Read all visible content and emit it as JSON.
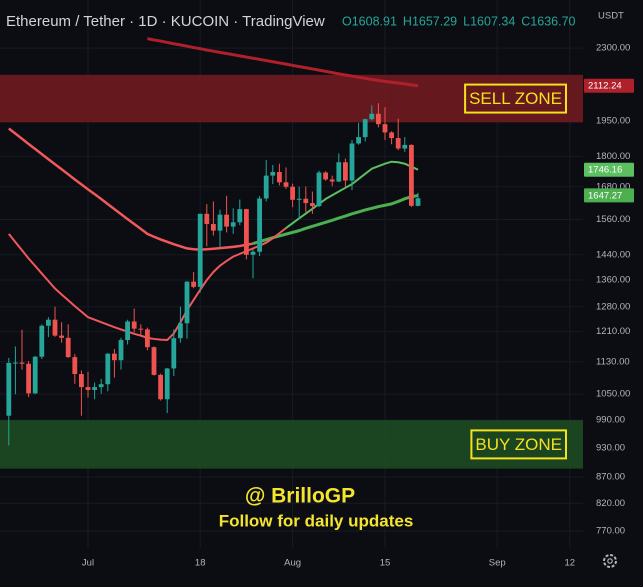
{
  "chart_data": {
    "type": "candlestick",
    "title": "Ethereum / Tether · 1D · KUCOIN · TradingView",
    "ohlc_legend": [
      "O1608.91",
      "H1657.29",
      "L1607.34",
      "C1636.70"
    ],
    "y_unit": "USDT",
    "log_scale": true,
    "grid": true,
    "up_color": "#26a69a",
    "down_color": "#ef5350",
    "ylim": [
      741,
      2565
    ],
    "yticks": [
      {
        "value": 770,
        "label": "770.00"
      },
      {
        "value": 820,
        "label": "820.00"
      },
      {
        "value": 870,
        "label": "870.00"
      },
      {
        "value": 930,
        "label": "930.00"
      },
      {
        "value": 990,
        "label": "990.00"
      },
      {
        "value": 1050,
        "label": "1050.00"
      },
      {
        "value": 1130,
        "label": "1130.00"
      },
      {
        "value": 1210,
        "label": "1210.00"
      },
      {
        "value": 1280,
        "label": "1280.00"
      },
      {
        "value": 1360,
        "label": "1360.00"
      },
      {
        "value": 1440,
        "label": "1440.00"
      },
      {
        "value": 1560,
        "label": "1560.00"
      },
      {
        "value": 1680,
        "label": "1680.00"
      },
      {
        "value": 1800,
        "label": "1800.00"
      },
      {
        "value": 1950,
        "label": "1950.00"
      },
      {
        "value": 2300,
        "label": "2300.00"
      }
    ],
    "categories": [
      null,
      null,
      null,
      null,
      null,
      null,
      null,
      null,
      null,
      null,
      null,
      null,
      "Jul",
      null,
      null,
      null,
      null,
      null,
      null,
      null,
      null,
      null,
      null,
      null,
      null,
      null,
      null,
      null,
      null,
      "18",
      null,
      null,
      null,
      null,
      null,
      null,
      null,
      null,
      null,
      null,
      null,
      null,
      null,
      "Aug",
      null,
      null,
      null,
      null,
      null,
      null,
      null,
      null,
      null,
      null,
      null,
      null,
      null,
      "15",
      null,
      null,
      null,
      null,
      null,
      null,
      null,
      null,
      null,
      null,
      null,
      null,
      null,
      null,
      null,
      null,
      "Sep",
      null,
      null,
      null,
      null,
      null,
      null,
      null,
      null,
      null,
      null,
      "12",
      null
    ],
    "open": [
      1000,
      1127,
      1128,
      1125,
      1052,
      1143,
      1226,
      1243,
      1199,
      1193,
      1142,
      1099,
      1067,
      1060,
      1067,
      1074,
      1151,
      1134,
      1187,
      1238,
      1218,
      1216,
      1168,
      1097,
      1038,
      1113,
      1192,
      1233,
      1355,
      1339,
      1580,
      1544,
      1521,
      1577,
      1535,
      1550,
      1597,
      1440,
      1450,
      1636,
      1723,
      1737,
      1697,
      1680,
      1631,
      1635,
      1619,
      1608,
      1735,
      1708,
      1700,
      1776,
      1704,
      1853,
      1880,
      1958,
      1982,
      1936,
      1900,
      1876,
      1832,
      1847,
      1608.91,
      null,
      null,
      null,
      null,
      null,
      null,
      null,
      null,
      null,
      null,
      null,
      null,
      null,
      null,
      null,
      null,
      null,
      null,
      null,
      null,
      null,
      null,
      null,
      null
    ],
    "high": [
      1140,
      1170,
      1215,
      1132,
      1145,
      1230,
      1250,
      1280,
      1236,
      1230,
      1150,
      1108,
      1105,
      1078,
      1087,
      1152,
      1163,
      1193,
      1243,
      1275,
      1230,
      1221,
      1170,
      1100,
      1114,
      1216,
      1280,
      1356,
      1385,
      1581,
      1615,
      1625,
      1595,
      1646,
      1600,
      1632,
      1598,
      1458,
      1645,
      1785,
      1765,
      1770,
      1755,
      1692,
      1680,
      1681,
      1662,
      1742,
      1740,
      1723,
      1812,
      1791,
      1868,
      1942,
      1960,
      2020,
      2030,
      2012,
      1905,
      1960,
      1880,
      1850,
      1657.29,
      null,
      null,
      null,
      null,
      null,
      null,
      null,
      null,
      null,
      null,
      null,
      null,
      null,
      null,
      null,
      null,
      null,
      null,
      null,
      null,
      null,
      null,
      null,
      null
    ],
    "low": [
      935,
      1050,
      1110,
      1043,
      1050,
      1137,
      1195,
      1196,
      1180,
      1140,
      1075,
      1000,
      1042,
      1038,
      1051,
      1057,
      1090,
      1110,
      1175,
      1208,
      1200,
      1160,
      1095,
      1035,
      1006,
      1094,
      1180,
      1191,
      1335,
      1322,
      1468,
      1504,
      1463,
      1515,
      1510,
      1540,
      1425,
      1365,
      1436,
      1625,
      1690,
      1685,
      1672,
      1604,
      1560,
      1585,
      1580,
      1604,
      1703,
      1682,
      1698,
      1680,
      1667,
      1848,
      1862,
      1952,
      1922,
      1867,
      1850,
      1825,
      1818,
      1605,
      1607.34,
      null,
      null,
      null,
      null,
      null,
      null,
      null,
      null,
      null,
      null,
      null,
      null,
      null,
      null,
      null,
      null,
      null,
      null,
      null,
      null,
      null,
      null,
      null,
      null
    ],
    "close": [
      1127,
      1128,
      1125,
      1052,
      1143,
      1226,
      1243,
      1199,
      1193,
      1142,
      1099,
      1067,
      1060,
      1067,
      1074,
      1151,
      1134,
      1187,
      1238,
      1218,
      1216,
      1168,
      1097,
      1038,
      1113,
      1192,
      1233,
      1355,
      1339,
      1580,
      1544,
      1521,
      1577,
      1535,
      1550,
      1597,
      1440,
      1450,
      1636,
      1723,
      1737,
      1697,
      1680,
      1631,
      1635,
      1619,
      1608,
      1735,
      1708,
      1700,
      1776,
      1704,
      1853,
      1880,
      1958,
      1982,
      1936,
      1900,
      1876,
      1832,
      1847,
      1608.91,
      1636.7,
      null,
      null,
      null,
      null,
      null,
      null,
      null,
      null,
      null,
      null,
      null,
      null,
      null,
      null,
      null,
      null,
      null,
      null,
      null,
      null,
      null,
      null,
      null,
      null
    ],
    "series": [
      {
        "color": "#b0202a",
        "width": 3,
        "show_last_value": true,
        "values": [
          null,
          null,
          null,
          null,
          null,
          null,
          null,
          null,
          null,
          null,
          null,
          null,
          null,
          null,
          null,
          null,
          null,
          null,
          null,
          null,
          null,
          2350,
          2343,
          2337,
          2330,
          2323,
          2317,
          2310,
          2303,
          2297,
          2290,
          2284,
          2278,
          2272,
          2266,
          2260,
          2254,
          2248,
          2242,
          2236,
          2230,
          2224,
          2218,
          2212,
          2206,
          2200,
          2194,
          2188,
          2182,
          2176,
          2170,
          2164,
          2159,
          2153,
          2148,
          2142,
          2138,
          2133,
          2129,
          2125,
          2121,
          2116,
          2112.24,
          null,
          null,
          null,
          null,
          null,
          null,
          null,
          null,
          null,
          null,
          null,
          null,
          null,
          null,
          null,
          null,
          null,
          null,
          null,
          null,
          null,
          null,
          null,
          null
        ]
      },
      {
        "color": "#f0585c",
        "width": 2.5,
        "values": [
          1917,
          1895,
          1873,
          1851,
          1830,
          1809,
          1788,
          1768,
          1748,
          1728,
          1708,
          1689,
          1670,
          1652,
          1634,
          1615,
          1597,
          1579,
          1561,
          1544,
          1527,
          1510,
          1500,
          1491,
          1483,
          1475,
          1468,
          1461,
          1458,
          1457,
          1458,
          1460,
          1462,
          1464,
          1466,
          1469,
          1473,
          1477,
          null,
          null,
          null,
          null,
          null,
          null,
          null,
          null,
          null,
          null,
          null,
          null,
          null,
          null,
          null,
          null,
          null,
          null,
          null,
          null,
          null,
          null,
          null,
          null,
          null,
          null,
          null,
          null,
          null,
          null,
          null,
          null,
          null,
          null,
          null,
          null,
          null,
          null,
          null,
          null,
          null,
          null,
          null,
          null,
          null,
          null,
          null,
          null,
          null
        ]
      },
      {
        "color": "#4caf50",
        "width": 3,
        "show_last_value": true,
        "values": [
          null,
          null,
          null,
          null,
          null,
          null,
          null,
          null,
          null,
          null,
          null,
          null,
          null,
          null,
          null,
          null,
          null,
          null,
          null,
          null,
          null,
          null,
          null,
          null,
          null,
          null,
          null,
          null,
          null,
          null,
          null,
          null,
          null,
          null,
          null,
          null,
          null,
          1477,
          1484,
          1490,
          1497,
          1503,
          1509,
          1515,
          1521,
          1529,
          1536,
          1543,
          1550,
          1557,
          1565,
          1572,
          1580,
          1587,
          1594,
          1600,
          1606,
          1611,
          1616,
          1625,
          1635,
          1642,
          1647.27,
          null,
          null,
          null,
          null,
          null,
          null,
          null,
          null,
          null,
          null,
          null,
          null,
          null,
          null,
          null,
          null,
          null,
          null,
          null,
          null,
          null,
          null,
          null,
          null
        ]
      },
      {
        "color": "#f0585c",
        "width": 2,
        "values": [
          1510,
          1482,
          1455,
          1428,
          1404,
          1380,
          1357,
          1334,
          1316,
          1299,
          1282,
          1266,
          1250,
          1243,
          1236,
          1229,
          1222,
          1216,
          1210,
          1204,
          1199,
          1193,
          1190,
          1188,
          1187,
          1205,
          1235,
          1270,
          1300,
          1330,
          1360,
          1385,
          1405,
          1420,
          1434,
          1443,
          1452,
          1461,
          1470,
          1480,
          1495,
          1512,
          1530,
          null,
          null,
          null,
          null,
          null,
          null,
          null,
          null,
          null,
          null,
          null,
          null,
          null,
          null,
          null,
          null,
          null,
          null,
          null,
          null,
          null,
          null,
          null,
          null,
          null,
          null,
          null,
          null,
          null,
          null,
          null,
          null,
          null,
          null,
          null,
          null,
          null,
          null,
          null,
          null,
          null,
          null,
          null,
          null
        ]
      },
      {
        "color": "#5cbf60",
        "width": 2,
        "show_last_value": true,
        "values": [
          null,
          null,
          null,
          null,
          null,
          null,
          null,
          null,
          null,
          null,
          null,
          null,
          null,
          null,
          null,
          null,
          null,
          null,
          null,
          null,
          null,
          null,
          null,
          null,
          null,
          null,
          null,
          null,
          null,
          null,
          null,
          null,
          null,
          null,
          null,
          null,
          null,
          null,
          null,
          null,
          null,
          null,
          1530,
          1547,
          1564,
          1581,
          1598,
          1616,
          1634,
          1648,
          1662,
          1676,
          1690,
          1710,
          1730,
          1750,
          1760,
          1770,
          1778,
          1776,
          1770,
          1758,
          1746.16,
          null,
          null,
          null,
          null,
          null,
          null,
          null,
          null,
          null,
          null,
          null,
          null,
          null,
          null,
          null,
          null,
          null,
          null,
          null,
          null,
          null,
          null,
          null,
          null
        ]
      }
    ],
    "zones": [
      {
        "label": "SELL ZONE",
        "from": 1944,
        "to": 2165,
        "color": "#6e1a1f"
      },
      {
        "label": "BUY ZONE",
        "from": 887,
        "to": 990,
        "color": "#1d4a22"
      }
    ],
    "annotations": [
      "@ BrilloGP",
      "Follow for daily updates"
    ]
  }
}
